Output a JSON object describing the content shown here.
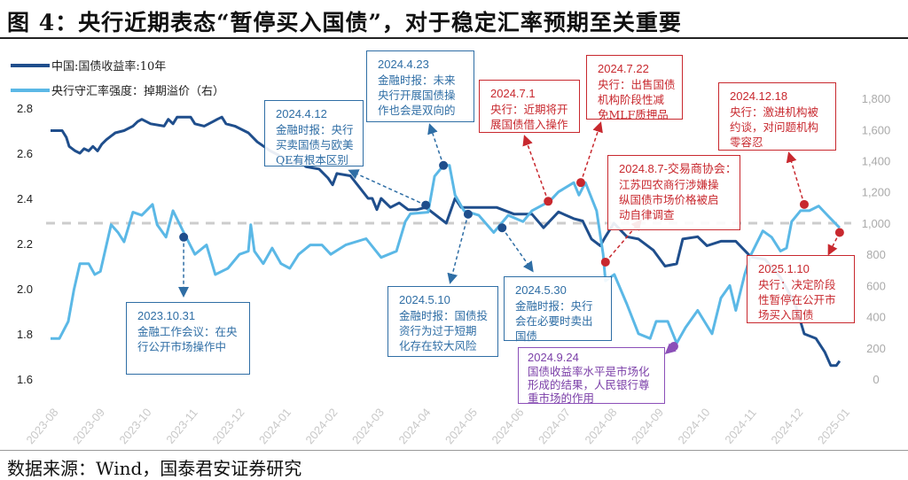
{
  "title": "图 4：央行近期表态“暂停买入国债”，对于稳定汇率预期至关重要",
  "source": "数据来源：Wind，国泰君安证券研究",
  "chart_data": {
    "type": "line",
    "title": "图 4：央行近期表态“暂停买入国债”，对于稳定汇率预期至关重要",
    "x_tick_labels": [
      "2023-08",
      "2023-09",
      "2023-10",
      "2023-11",
      "2023-12",
      "2024-01",
      "2024-02",
      "2024-03",
      "2024-04",
      "2024-05",
      "2024-06",
      "2024-07",
      "2024-08",
      "2024-09",
      "2024-10",
      "2024-11",
      "2024-12",
      "2025-01"
    ],
    "x_unit": "months since 2023-08-01",
    "left_axis": {
      "ylim": [
        1.6,
        2.8
      ],
      "ticks": [
        "2.8",
        "2.6",
        "2.4",
        "2.2",
        "2.0",
        "1.8",
        "1.6"
      ]
    },
    "right_axis": {
      "ylim": [
        0,
        1800
      ],
      "ticks": [
        "1,800",
        "1,600",
        "1,400",
        "1,200",
        "1,000",
        "800",
        "600",
        "400",
        "200",
        "0"
      ]
    },
    "reference_line_right": 1000,
    "legend_placement": "top-left",
    "colors": {
      "yield": "#1f4e8c",
      "swap": "#5bb8e6",
      "blue": "#2f6ea5",
      "red": "#c8282e",
      "purple": "#8b4fb8",
      "ref": "#cccccc"
    },
    "series": [
      {
        "name": "中国:国债收益率:10年",
        "axis": "left",
        "points": [
          [
            0,
            2.7
          ],
          [
            0.25,
            2.7
          ],
          [
            0.34,
            2.67
          ],
          [
            0.4,
            2.63
          ],
          [
            0.53,
            2.61
          ],
          [
            0.63,
            2.6
          ],
          [
            0.72,
            2.62
          ],
          [
            0.82,
            2.61
          ],
          [
            0.91,
            2.63
          ],
          [
            1.01,
            2.61
          ],
          [
            1.1,
            2.64
          ],
          [
            1.2,
            2.66
          ],
          [
            1.39,
            2.69
          ],
          [
            1.58,
            2.7
          ],
          [
            1.77,
            2.72
          ],
          [
            1.87,
            2.74
          ],
          [
            1.96,
            2.75
          ],
          [
            2.15,
            2.73
          ],
          [
            2.44,
            2.72
          ],
          [
            2.53,
            2.75
          ],
          [
            2.63,
            2.73
          ],
          [
            2.72,
            2.76
          ],
          [
            2.91,
            2.76
          ],
          [
            3.01,
            2.76
          ],
          [
            3.1,
            2.73
          ],
          [
            3.3,
            2.72
          ],
          [
            3.49,
            2.74
          ],
          [
            3.58,
            2.75
          ],
          [
            3.68,
            2.76
          ],
          [
            3.77,
            2.73
          ],
          [
            3.96,
            2.72
          ],
          [
            4.25,
            2.69
          ],
          [
            4.44,
            2.65
          ],
          [
            4.72,
            2.61
          ],
          [
            5.01,
            2.58
          ],
          [
            5.2,
            2.55
          ],
          [
            5.3,
            2.57
          ],
          [
            5.49,
            2.54
          ],
          [
            5.77,
            2.53
          ],
          [
            5.96,
            2.49
          ],
          [
            6.06,
            2.46
          ],
          [
            6.15,
            2.51
          ],
          [
            6.44,
            2.5
          ],
          [
            6.63,
            2.45
          ],
          [
            6.82,
            2.4
          ],
          [
            6.91,
            2.4
          ],
          [
            7.01,
            2.35
          ],
          [
            7.1,
            2.4
          ],
          [
            7.3,
            2.36
          ],
          [
            7.49,
            2.38
          ],
          [
            7.68,
            2.35
          ],
          [
            7.87,
            2.35
          ],
          [
            8.06,
            2.36
          ],
          [
            8.5,
            2.29
          ],
          [
            8.69,
            2.4
          ],
          [
            8.82,
            2.36
          ],
          [
            9.01,
            2.36
          ],
          [
            9.26,
            2.36
          ],
          [
            9.58,
            2.36
          ],
          [
            9.96,
            2.33
          ],
          [
            10.15,
            2.33
          ],
          [
            10.34,
            2.33
          ],
          [
            10.59,
            2.27
          ],
          [
            10.91,
            2.34
          ],
          [
            11.24,
            2.31
          ],
          [
            11.43,
            2.3
          ],
          [
            11.62,
            2.22
          ],
          [
            11.81,
            2.19
          ],
          [
            11.92,
            2.23
          ],
          [
            12.1,
            2.29
          ],
          [
            12.38,
            2.23
          ],
          [
            12.63,
            2.22
          ],
          [
            12.95,
            2.17
          ],
          [
            13.2,
            2.1
          ],
          [
            13.45,
            2.11
          ],
          [
            13.58,
            2.22
          ],
          [
            13.9,
            2.23
          ],
          [
            14.1,
            2.19
          ],
          [
            14.4,
            2.21
          ],
          [
            14.72,
            2.21
          ],
          [
            15.05,
            2.14
          ],
          [
            15.35,
            2.13
          ],
          [
            15.68,
            2.05
          ],
          [
            16.0,
            1.93
          ],
          [
            16.19,
            1.8
          ],
          [
            16.44,
            1.78
          ],
          [
            16.63,
            1.72
          ],
          [
            16.76,
            1.66
          ],
          [
            16.88,
            1.66
          ],
          [
            16.95,
            1.68
          ]
        ]
      },
      {
        "name": "央行守汇率强度：掉期溢价（右）",
        "axis": "right",
        "points": [
          [
            0,
            260
          ],
          [
            0.19,
            260
          ],
          [
            0.38,
            370
          ],
          [
            0.5,
            570
          ],
          [
            0.63,
            740
          ],
          [
            0.82,
            740
          ],
          [
            0.95,
            670
          ],
          [
            1.07,
            690
          ],
          [
            1.3,
            990
          ],
          [
            1.45,
            940
          ],
          [
            1.58,
            880
          ],
          [
            1.77,
            1070
          ],
          [
            1.96,
            1050
          ],
          [
            2.19,
            1120
          ],
          [
            2.29,
            990
          ],
          [
            2.48,
            910
          ],
          [
            2.63,
            1080
          ],
          [
            2.86,
            940
          ],
          [
            3.1,
            800
          ],
          [
            3.35,
            860
          ],
          [
            3.54,
            670
          ],
          [
            3.81,
            710
          ],
          [
            4.06,
            800
          ],
          [
            4.25,
            820
          ],
          [
            4.3,
            990
          ],
          [
            4.38,
            820
          ],
          [
            4.57,
            740
          ],
          [
            4.76,
            840
          ],
          [
            4.95,
            740
          ],
          [
            5.14,
            710
          ],
          [
            5.33,
            800
          ],
          [
            5.58,
            860
          ],
          [
            5.83,
            860
          ],
          [
            6.02,
            800
          ],
          [
            6.34,
            860
          ],
          [
            6.78,
            900
          ],
          [
            7.1,
            780
          ],
          [
            7.43,
            820
          ],
          [
            7.62,
            1010
          ],
          [
            7.73,
            1060
          ],
          [
            8.11,
            1070
          ],
          [
            8.25,
            1300
          ],
          [
            8.44,
            1370
          ],
          [
            8.57,
            1370
          ],
          [
            8.69,
            1180
          ],
          [
            8.88,
            1080
          ],
          [
            9.2,
            1050
          ],
          [
            9.52,
            940
          ],
          [
            9.83,
            1050
          ],
          [
            10.15,
            1010
          ],
          [
            10.34,
            1080
          ],
          [
            10.72,
            1140
          ],
          [
            10.91,
            1200
          ],
          [
            11.24,
            1260
          ],
          [
            11.35,
            1180
          ],
          [
            11.49,
            1260
          ],
          [
            11.73,
            1080
          ],
          [
            11.87,
            800
          ],
          [
            11.92,
            630
          ],
          [
            12.11,
            670
          ],
          [
            12.38,
            480
          ],
          [
            12.63,
            290
          ],
          [
            12.88,
            260
          ],
          [
            13.01,
            370
          ],
          [
            13.26,
            370
          ],
          [
            13.45,
            230
          ],
          [
            13.64,
            330
          ],
          [
            13.9,
            440
          ],
          [
            14.21,
            290
          ],
          [
            14.4,
            520
          ],
          [
            14.59,
            600
          ],
          [
            14.72,
            440
          ],
          [
            14.91,
            670
          ],
          [
            15.05,
            800
          ],
          [
            15.3,
            950
          ],
          [
            15.49,
            910
          ],
          [
            15.68,
            820
          ],
          [
            15.81,
            840
          ],
          [
            15.92,
            1010
          ],
          [
            16.11,
            1080
          ],
          [
            16.3,
            1080
          ],
          [
            16.5,
            1110
          ],
          [
            16.69,
            1050
          ],
          [
            16.95,
            970
          ]
        ]
      }
    ],
    "annotations": [
      {
        "date": "2023.10.31",
        "lines": [
          "金融工作会议：在央",
          "行公开市场操作中"
        ],
        "color": "blue",
        "x": 2.86,
        "axis": "right",
        "y": 910
      },
      {
        "date": "2024.4.12",
        "lines": [
          "金融时报：央行",
          "买卖国债与欧美",
          "QE有根本区别"
        ],
        "color": "blue",
        "x": 8.06,
        "axis": "left",
        "y": 2.37
      },
      {
        "date": "2024.4.23",
        "lines": [
          "金融时报：未来",
          "央行开展国债操",
          "作也会是双向的"
        ],
        "color": "blue",
        "x": 8.44,
        "axis": "right",
        "y": 1370
      },
      {
        "date": "2024.5.10",
        "lines": [
          "金融时报：国债投",
          "资行为过于短期",
          "化存在较大风险"
        ],
        "color": "blue",
        "x": 8.97,
        "axis": "left",
        "y": 2.33
      },
      {
        "date": "2024.5.30",
        "lines": [
          "金融时报：央行",
          "会在必要时卖出",
          "国债"
        ],
        "color": "blue",
        "x": 9.7,
        "axis": "right",
        "y": 970
      },
      {
        "date": "2024.7.1",
        "lines": [
          "央行：近期将开",
          "展国债借入操作"
        ],
        "color": "red",
        "x": 10.69,
        "axis": "right",
        "y": 1140
      },
      {
        "date": "2024.7.22",
        "lines": [
          "央行：出售国债",
          "机构阶段性减",
          "免MLF质押品"
        ],
        "color": "red",
        "x": 11.39,
        "axis": "right",
        "y": 1260
      },
      {
        "date": "2024.8.7-交易商协会：",
        "lines": [
          "江苏四农商行涉嫌操",
          "纵国债市场价格被启",
          "动自律调查"
        ],
        "color": "red",
        "x": 11.92,
        "axis": "right",
        "y": 750
      },
      {
        "date": "2024.9.24",
        "lines": [
          "国债收益率水平是市场化",
          "形成的结果，人民银行尊",
          "重市场的作用"
        ],
        "color": "purple",
        "x": 13.39,
        "axis": "right",
        "y": 210
      },
      {
        "date": "2024.12.18",
        "lines": [
          "央行：激进机构被",
          "约谈，对问题机构",
          "零容忍"
        ],
        "color": "red",
        "x": 16.19,
        "axis": "right",
        "y": 1120
      },
      {
        "date": "2025.1.10",
        "lines": [
          "央行：决定阶段",
          "性暂停在公开市",
          "场买入国债"
        ],
        "color": "red",
        "x": 16.95,
        "axis": "right",
        "y": 940
      }
    ]
  }
}
